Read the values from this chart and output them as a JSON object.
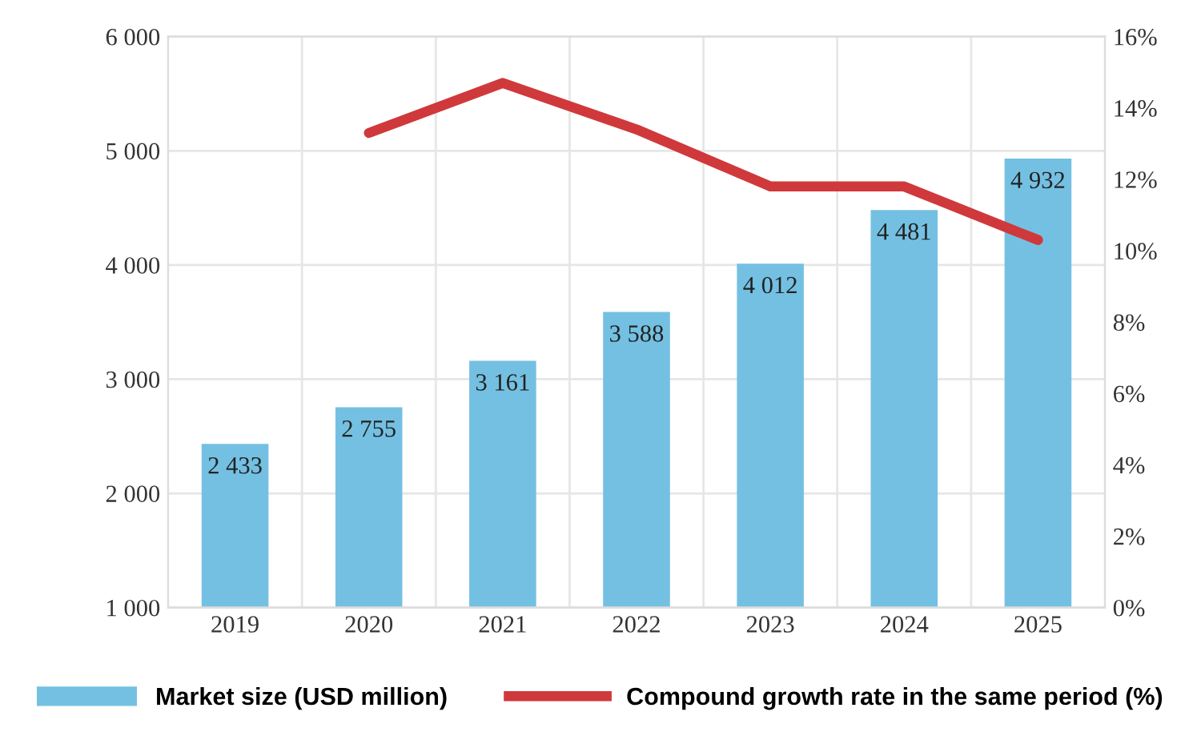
{
  "chart_data": {
    "type": "bar",
    "categories": [
      "2019",
      "2020",
      "2021",
      "2022",
      "2023",
      "2024",
      "2025"
    ],
    "series": [
      {
        "name": "Market size (USD million)",
        "color": "#74c0e2",
        "values": [
          2433,
          2755,
          3161,
          3588,
          4012,
          4481,
          4932
        ],
        "value_labels": [
          "2 433",
          "2 755",
          "3 161",
          "3 588",
          "4 012",
          "4 481",
          "4 932"
        ]
      },
      {
        "name": "Compound growth rate in the same period (%)",
        "type": "line",
        "axis": "y2",
        "color": "#d0393b",
        "values": [
          null,
          13.3,
          14.7,
          13.4,
          11.8,
          11.8,
          10.3
        ]
      }
    ],
    "ylim": [
      1000,
      6000
    ],
    "yticks": [
      {
        "value": 1000,
        "label": "1 000"
      },
      {
        "value": 2000,
        "label": "2 000"
      },
      {
        "value": 3000,
        "label": "3 000"
      },
      {
        "value": 4000,
        "label": "4 000"
      },
      {
        "value": 5000,
        "label": "5 000"
      },
      {
        "value": 6000,
        "label": "6 000"
      }
    ],
    "y2lim": [
      0,
      16
    ],
    "y2ticks": [
      {
        "value": 0,
        "label": "0%"
      },
      {
        "value": 2,
        "label": "2%"
      },
      {
        "value": 4,
        "label": "4%"
      },
      {
        "value": 6,
        "label": "6%"
      },
      {
        "value": 8,
        "label": "8%"
      },
      {
        "value": 10,
        "label": "10%"
      },
      {
        "value": 12,
        "label": "12%"
      },
      {
        "value": 14,
        "label": "14%"
      },
      {
        "value": 16,
        "label": "16%"
      }
    ],
    "grid": true,
    "legend": "bottom"
  }
}
